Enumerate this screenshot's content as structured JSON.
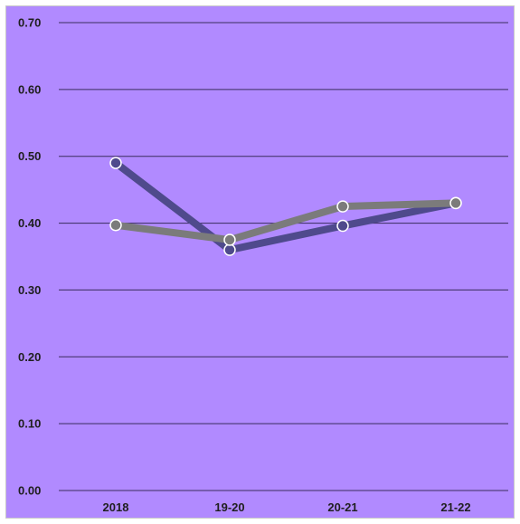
{
  "chart_data": {
    "type": "line",
    "title": "",
    "xlabel": "",
    "ylabel": "",
    "categories": [
      "2018",
      "19-20",
      "20-21",
      "21-22"
    ],
    "ylim": [
      0,
      0.7
    ],
    "yticks": [
      "0.00",
      "0.10",
      "0.20",
      "0.30",
      "0.40",
      "0.50",
      "0.60",
      "0.70"
    ],
    "grid": true,
    "background_color": "#b18aff",
    "series": [
      {
        "values": [
          0.49,
          0.36,
          0.396,
          0.43
        ],
        "color": "#4f4a8c"
      },
      {
        "values": [
          0.397,
          0.375,
          0.425,
          0.43
        ],
        "color": "#7b7b7b"
      }
    ]
  }
}
